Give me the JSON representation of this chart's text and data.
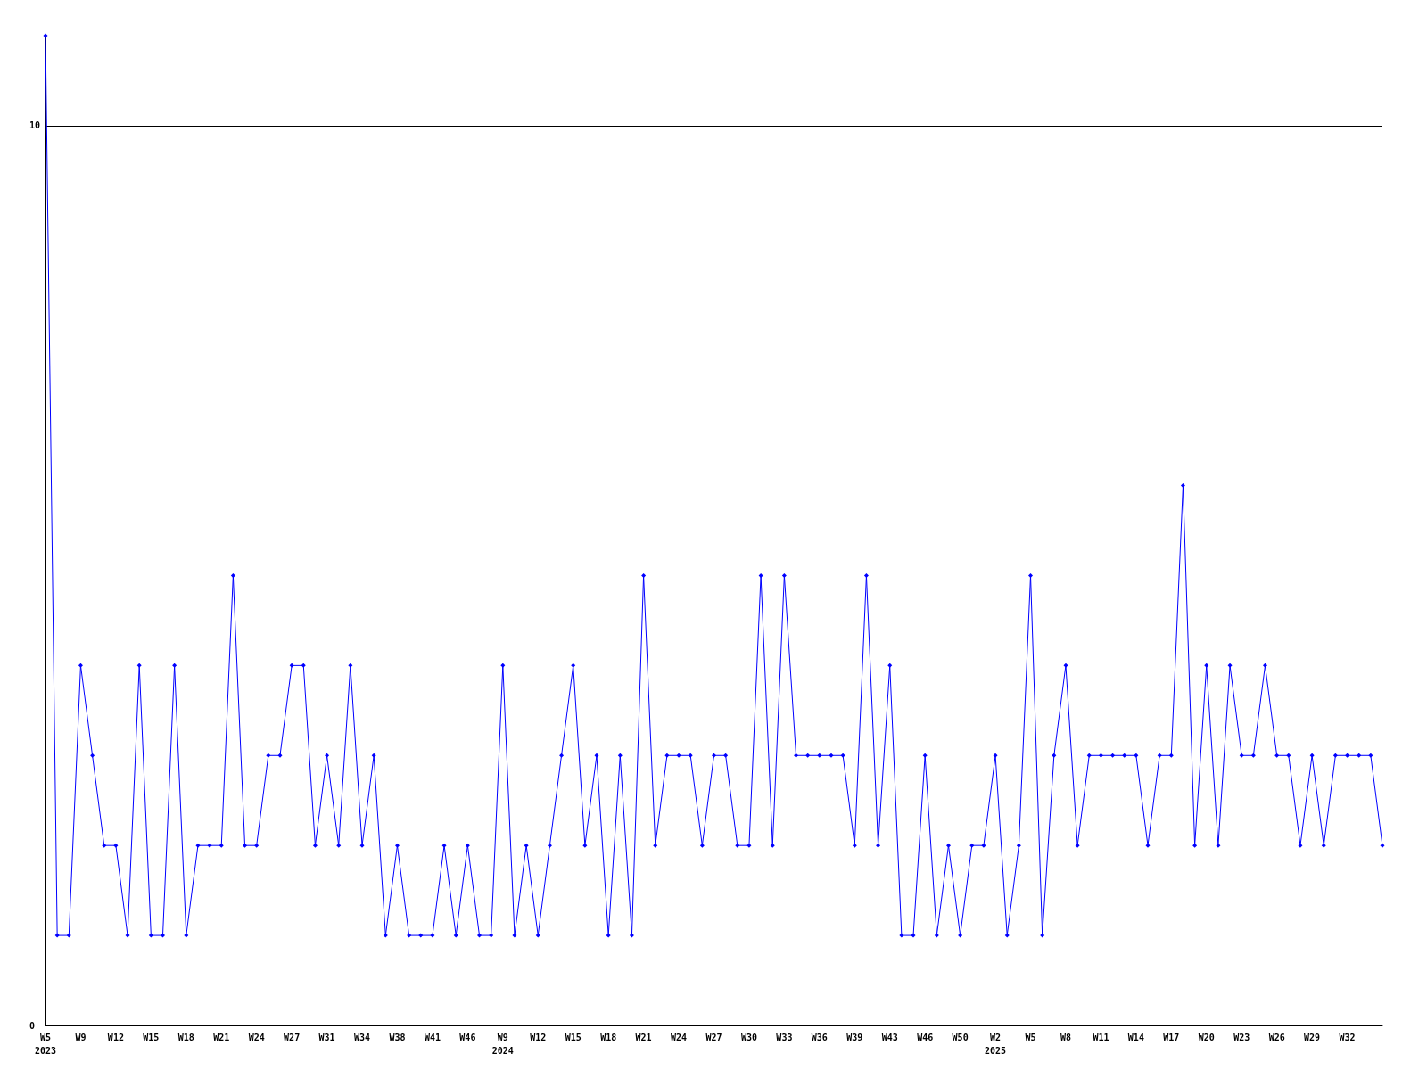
{
  "chart_data": {
    "type": "line",
    "categories": [
      "W5\n2023",
      null,
      null,
      "W9",
      null,
      null,
      "W12",
      null,
      null,
      "W15",
      null,
      null,
      "W18",
      null,
      null,
      "W21",
      null,
      null,
      "W24",
      null,
      null,
      "W27",
      null,
      null,
      "W31",
      null,
      null,
      "W34",
      null,
      null,
      "W38",
      null,
      null,
      "W41",
      null,
      null,
      "W46",
      null,
      null,
      "W9\n2024",
      null,
      null,
      "W12",
      null,
      null,
      "W15",
      null,
      null,
      "W18",
      null,
      null,
      "W21",
      null,
      null,
      "W24",
      null,
      null,
      "W27",
      null,
      null,
      "W30",
      null,
      null,
      "W33",
      null,
      null,
      "W36",
      null,
      null,
      "W39",
      null,
      null,
      "W43",
      null,
      null,
      "W46",
      null,
      null,
      "W50",
      null,
      null,
      "W2\n2025",
      null,
      null,
      "W5",
      null,
      null,
      "W8",
      null,
      null,
      "W11",
      null,
      null,
      "W14",
      null,
      null,
      "W17",
      null,
      null,
      "W20",
      null,
      null,
      "W23",
      null,
      null,
      "W26",
      null,
      null,
      "W29",
      null,
      null,
      "W32",
      null,
      null,
      null
    ],
    "series": [
      {
        "color": "#0000ff",
        "values": [
          11,
          1,
          1,
          4,
          3,
          2,
          2,
          1,
          4,
          1,
          1,
          4,
          1,
          2,
          2,
          2,
          5,
          2,
          2,
          3,
          3,
          4,
          4,
          2,
          3,
          2,
          4,
          2,
          3,
          1,
          2,
          1,
          1,
          1,
          2,
          1,
          2,
          1,
          1,
          4,
          1,
          2,
          1,
          2,
          3,
          4,
          2,
          3,
          1,
          3,
          1,
          5,
          2,
          3,
          3,
          3,
          2,
          3,
          3,
          2,
          2,
          5,
          2,
          5,
          3,
          3,
          3,
          3,
          3,
          2,
          5,
          2,
          4,
          1,
          1,
          3,
          1,
          2,
          1,
          2,
          2,
          3,
          1,
          2,
          5,
          1,
          3,
          4,
          2,
          3,
          3,
          3,
          3,
          3,
          2,
          3,
          3,
          6,
          2,
          4,
          2,
          4,
          3,
          3,
          4,
          3,
          3,
          2,
          3,
          2,
          3,
          3,
          3,
          3,
          2
        ]
      }
    ],
    "ylim": [
      0,
      11
    ],
    "yticks": [
      0,
      10
    ],
    "grid": "y",
    "marker": "diamond",
    "line_style": "solid"
  }
}
